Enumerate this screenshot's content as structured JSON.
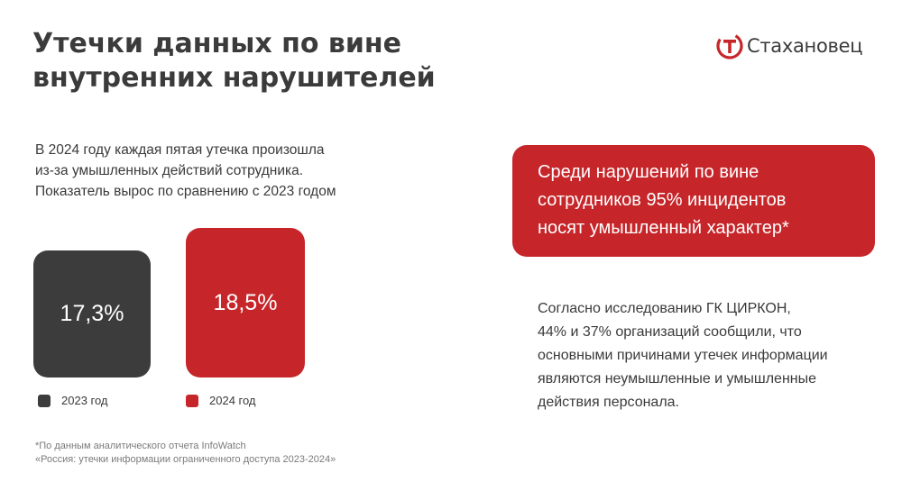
{
  "title": [
    "Утечки данных по вине",
    "внутренних нарушителей"
  ],
  "brand": {
    "name": "Стахановец",
    "icon": "stakhanovets-logo-icon",
    "color": "#c6262a"
  },
  "intro": [
    "В 2024 году каждая пятая утечка произошла",
    "из-за умышленных действий сотрудника.",
    "Показатель вырос по сравнению с 2023 годом"
  ],
  "chart_data": {
    "type": "bar",
    "categories": [
      "2023 год",
      "2024 год"
    ],
    "values": [
      17.3,
      18.5
    ],
    "value_labels": [
      "17,3%",
      "18,5%"
    ],
    "colors": [
      "#3c3c3c",
      "#c6262a"
    ],
    "legend": [
      "2023 год",
      "2024 год"
    ],
    "legend_position": "bottom"
  },
  "callout": [
    "Среди нарушений по вине",
    "сотрудников 95% инцидентов",
    "носят умышленный характер*"
  ],
  "study": [
    "Согласно исследованию ГК ЦИРКОН,",
    "44% и 37% организаций сообщили, что",
    "основными причинами утечек информации",
    "являются неумышленные и умышленные",
    "действия персонала."
  ],
  "footnote": [
    "*По данным аналитического отчета InfoWatch",
    "«Россия: утечки информации ограниченного доступа 2023-2024»"
  ]
}
